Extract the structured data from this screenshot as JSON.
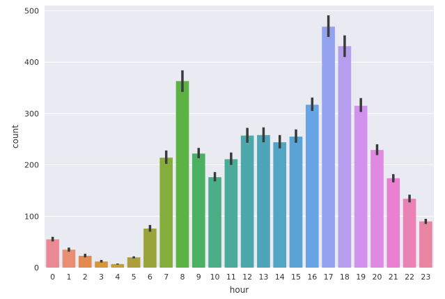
{
  "chart_data": {
    "type": "bar",
    "xlabel": "hour",
    "ylabel": "count",
    "ylim": [
      0,
      510
    ],
    "yticks": [
      0,
      100,
      200,
      300,
      400,
      500
    ],
    "grid": true,
    "background": "#eaeaf2",
    "error_bar_color": "#3a3a3a",
    "categories": [
      "0",
      "1",
      "2",
      "3",
      "4",
      "5",
      "6",
      "7",
      "8",
      "9",
      "10",
      "11",
      "12",
      "13",
      "14",
      "15",
      "16",
      "17",
      "18",
      "19",
      "20",
      "21",
      "22",
      "23"
    ],
    "values": [
      55,
      35,
      23,
      12,
      7,
      20,
      76,
      214,
      363,
      222,
      176,
      211,
      257,
      258,
      244,
      255,
      317,
      469,
      431,
      315,
      229,
      174,
      134,
      90
    ],
    "error_low": [
      51,
      31,
      20,
      10,
      6,
      18,
      70,
      202,
      342,
      213,
      168,
      200,
      243,
      244,
      232,
      243,
      305,
      449,
      410,
      303,
      219,
      166,
      127,
      85
    ],
    "error_high": [
      60,
      39,
      27,
      15,
      8,
      22,
      83,
      228,
      384,
      233,
      186,
      224,
      272,
      273,
      258,
      269,
      331,
      491,
      452,
      330,
      240,
      182,
      142,
      95
    ],
    "colors": [
      "#ea8a94",
      "#e88e73",
      "#e38a4e",
      "#d7953a",
      "#c3a03c",
      "#ad9f3b",
      "#99a43a",
      "#84ad3b",
      "#5cb343",
      "#4bb061",
      "#4bae86",
      "#4bab9b",
      "#4da8ab",
      "#4ea5b7",
      "#54a4c4",
      "#5aa3d4",
      "#68a3e6",
      "#94a3ef",
      "#b79eee",
      "#d092ec",
      "#e08ae2",
      "#ea80d0",
      "#ea82b6",
      "#ea84a3"
    ]
  }
}
